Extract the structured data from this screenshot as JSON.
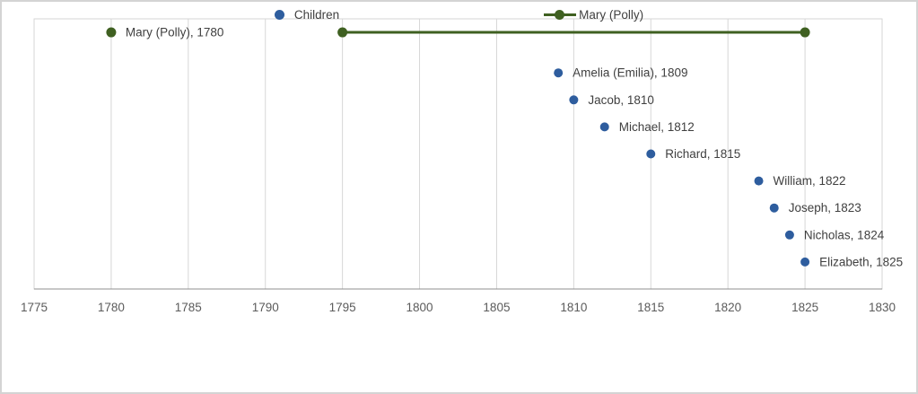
{
  "colors": {
    "children": "#2E5D9E",
    "mary": "#3F6021",
    "gridline": "#D6D6D6",
    "plot_border": "#D6D6D6",
    "axis_line": "#8F8F8F",
    "label_text": "#3F3F3F",
    "tick_text": "#5B5B5B",
    "outer_border": "#D4D4D4",
    "background": "#FFFFFF"
  },
  "chart_data": {
    "type": "scatter",
    "title": "",
    "xlabel": "",
    "ylabel": "",
    "grid": true,
    "legend_position": "bottom",
    "x_axis": {
      "min": 1775,
      "max": 1830,
      "tick_interval": 5,
      "ticks": [
        1775,
        1780,
        1785,
        1790,
        1795,
        1800,
        1805,
        1810,
        1815,
        1820,
        1825,
        1830
      ]
    },
    "y_axis": {
      "min": 0,
      "max": 10,
      "visible": false
    },
    "series": [
      {
        "name": "Children",
        "marker": "circle",
        "color": "#2E5D9E",
        "points": [
          {
            "name": "Amelia (Emilia)",
            "year": 1809,
            "row": 8,
            "label": "Amelia (Emilia), 1809"
          },
          {
            "name": "Jacob",
            "year": 1810,
            "row": 7,
            "label": "Jacob, 1810"
          },
          {
            "name": "Michael",
            "year": 1812,
            "row": 6,
            "label": "Michael, 1812"
          },
          {
            "name": "Richard",
            "year": 1815,
            "row": 5,
            "label": "Richard, 1815"
          },
          {
            "name": "William",
            "year": 1822,
            "row": 4,
            "label": "William, 1822"
          },
          {
            "name": "Joseph",
            "year": 1823,
            "row": 3,
            "label": "Joseph, 1823"
          },
          {
            "name": "Nicholas",
            "year": 1824,
            "row": 2,
            "label": "Nicholas, 1824"
          },
          {
            "name": "Elizabeth",
            "year": 1825,
            "row": 1,
            "label": "Elizabeth, 1825"
          }
        ]
      },
      {
        "name": "Mary (Polly)",
        "marker": "circle",
        "color": "#3F6021",
        "labeled_point": {
          "name": "Mary (Polly)",
          "year": 1780,
          "row": 9.5,
          "label": "Mary (Polly), 1780"
        },
        "line_segment": {
          "start_year": 1795,
          "end_year": 1825,
          "row": 9.5
        }
      }
    ],
    "legend": [
      {
        "label": "Children",
        "marker": "dot",
        "color": "#2E5D9E"
      },
      {
        "label": "Mary (Polly)",
        "marker": "line-dot",
        "color": "#3F6021"
      }
    ]
  }
}
